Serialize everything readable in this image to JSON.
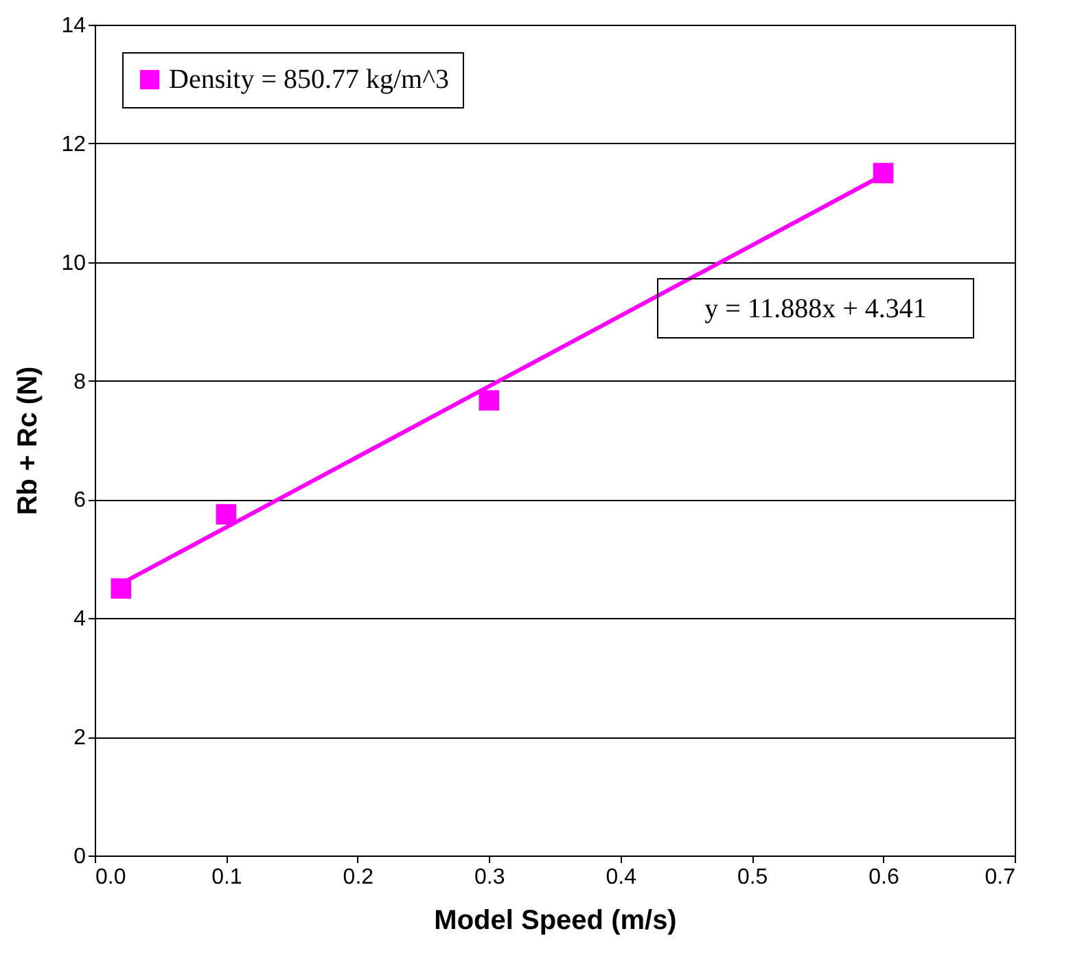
{
  "chart_data": {
    "type": "scatter",
    "xlabel": "Model Speed (m/s)",
    "ylabel": "Rb + Rc (N)",
    "series": [
      {
        "name": "Density = 850.77 kg/m^3",
        "color": "#ff00ff",
        "marker": "square",
        "x": [
          0.02,
          0.1,
          0.3,
          0.6
        ],
        "values": [
          4.5,
          5.75,
          7.67,
          11.5
        ]
      },
      {
        "type": "line",
        "color": "#ff00ff",
        "marker": "none",
        "x": [
          0.02,
          0.6
        ],
        "values": [
          4.58,
          11.47
        ]
      }
    ],
    "annotations": [
      "y = 11.888x + 4.341"
    ],
    "xlim": [
      0,
      0.7
    ],
    "xticks": [
      {
        "value": 0,
        "label": "0.0"
      },
      0.1,
      0.2,
      0.3,
      0.4,
      0.5,
      0.6,
      0.7
    ],
    "ylim": [
      0,
      14
    ],
    "yticks": [
      0,
      2,
      4,
      6,
      8,
      10,
      12,
      14
    ],
    "grid": "y",
    "legend": "top left"
  }
}
